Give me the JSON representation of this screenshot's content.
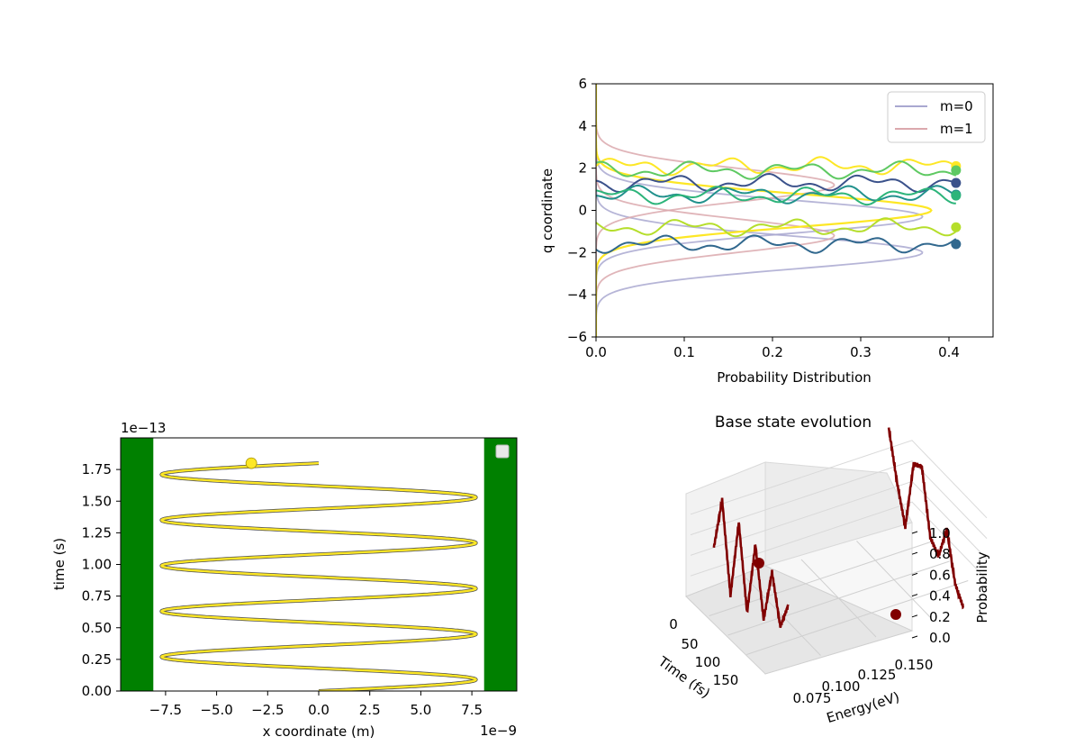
{
  "chart_data": [
    {
      "type": "line",
      "xlabel": "Probability Distribution",
      "ylabel": "q coordinate",
      "xlim": [
        0.0,
        0.45
      ],
      "ylim": [
        -6,
        6
      ],
      "xticks": [
        0.0,
        0.1,
        0.2,
        0.3,
        0.4
      ],
      "xtick_labels": [
        "0.0",
        "0.1",
        "0.2",
        "0.3",
        "0.4"
      ],
      "yticks": [
        6,
        4,
        2,
        0,
        -2,
        -4,
        -6
      ],
      "ytick_labels": [
        "6",
        "4",
        "2",
        "0",
        "−2",
        "−4",
        "−6"
      ],
      "legend": {
        "position": "top-right",
        "entries": [
          {
            "label": "m=0",
            "color": "#a9a8d0"
          },
          {
            "label": "m=1",
            "color": "#dba8ad"
          }
        ]
      },
      "density_series": [
        {
          "name": "m=0",
          "color": "#a9a8d0",
          "peak_q": [
            -2.0,
            -0.3
          ],
          "peak_value": 0.37
        },
        {
          "name": "m=1",
          "color": "#dba8ad",
          "peak_q": [
            1.2,
            -1.2
          ],
          "peak_value": 0.27
        },
        {
          "color": "#fde725",
          "peak_q": [
            0.0
          ],
          "peak_value": 0.38
        }
      ],
      "trajectory_colors": [
        "#fde725",
        "#5ec962",
        "#3b528b",
        "#21918c",
        "#2cb47a",
        "#b5de2b",
        "#31688e"
      ],
      "trajectory_final_q": [
        2.1,
        1.9,
        1.3,
        0.75,
        0.7,
        -0.8,
        -1.6
      ],
      "marker_x": 0.408
    },
    {
      "type": "scatter",
      "xlabel": "x coordinate (m)",
      "ylabel": "time (s)",
      "x_offset_label": "1e−9",
      "y_offset_label": "1e−13",
      "xlim": [
        -9.7,
        9.7
      ],
      "ylim": [
        0.0,
        2.0
      ],
      "xticks": [
        -7.5,
        -5.0,
        -2.5,
        0.0,
        2.5,
        5.0,
        7.5
      ],
      "xtick_labels": [
        "−7.5",
        "−5.0",
        "−2.5",
        "0.0",
        "2.5",
        "5.0",
        "7.5"
      ],
      "yticks": [
        0.0,
        0.25,
        0.5,
        0.75,
        1.0,
        1.25,
        1.5,
        1.75
      ],
      "ytick_labels": [
        "0.00",
        "0.25",
        "0.50",
        "0.75",
        "1.00",
        "1.25",
        "1.50",
        "1.75"
      ],
      "walls": {
        "color": "#008000",
        "left_edge": -8.1,
        "right_edge": 8.1
      },
      "trace_color": "#fde725",
      "trace_amplitude": 7.7,
      "oscillations": 5,
      "trace_tmax": 1.8,
      "particle": {
        "x": -3.3,
        "t": 1.8,
        "color": "#fde725"
      }
    },
    {
      "type": "line",
      "subtype": "3d",
      "title": "Base state evolution",
      "xlabel": "Time (fs)",
      "ylabel": "Energy(eV)",
      "zlabel": "Probability",
      "xticks": [
        "0",
        "50",
        "100",
        "150"
      ],
      "yticks": [
        "0.075",
        "0.100",
        "0.125",
        "0.150"
      ],
      "zticks": [
        "0.0",
        "0.2",
        "0.4",
        "0.6",
        "0.8",
        "1.0"
      ],
      "zlim": [
        0.0,
        1.0
      ],
      "line_color": "#800000",
      "series": [
        {
          "time_fs": [
            0,
            20,
            40,
            60,
            80,
            100,
            120,
            140,
            160,
            180
          ],
          "energy_eV": 0.075,
          "probability": [
            0.4,
            0.95,
            0.1,
            0.9,
            0.1,
            0.85,
            0.2,
            0.75,
            0.3,
            0.6
          ]
        },
        {
          "time_fs": [
            0,
            20,
            40,
            60,
            80,
            100,
            120,
            140,
            160,
            180
          ],
          "energy_eV": 0.15,
          "probability": [
            1.0,
            0.55,
            0.2,
            0.9,
            0.95,
            0.35,
            0.25,
            0.6,
            0.15,
            0.0
          ]
        }
      ]
    }
  ]
}
